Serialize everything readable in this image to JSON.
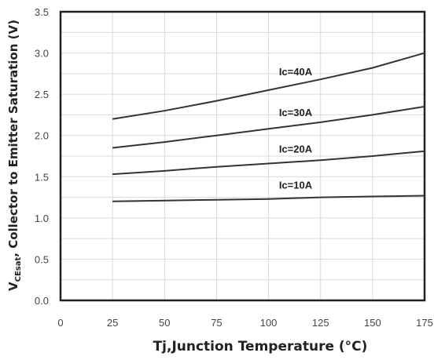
{
  "chart_data": {
    "type": "line",
    "title": "",
    "xlabel": "Tj,Junction Temperature (°C)",
    "ylabel_main": "V",
    "ylabel_sub": "CEsat",
    "ylabel_rest": ", Collector to Emitter Saturation (V)",
    "xlim": [
      0,
      175
    ],
    "ylim": [
      0,
      3.5
    ],
    "x_ticks": [
      0,
      25,
      50,
      75,
      100,
      125,
      150,
      175
    ],
    "x_tick_labels": [
      "0",
      "25",
      "50",
      "75",
      "100",
      "125",
      "150",
      "175"
    ],
    "y_ticks": [
      0,
      0.5,
      1.0,
      1.5,
      2.0,
      2.5,
      3.0,
      3.5
    ],
    "y_tick_labels": [
      "0.0",
      "0.5",
      "1.0",
      "1.5",
      "2.0",
      "2.5",
      "3.0",
      "3.5"
    ],
    "grid": true,
    "series": [
      {
        "name": "Ic=40A",
        "x": [
          25,
          50,
          75,
          100,
          125,
          150,
          175
        ],
        "y": [
          2.2,
          2.3,
          2.42,
          2.55,
          2.68,
          2.82,
          3.0
        ]
      },
      {
        "name": "Ic=30A",
        "x": [
          25,
          50,
          75,
          100,
          125,
          150,
          175
        ],
        "y": [
          1.85,
          1.92,
          2.0,
          2.08,
          2.16,
          2.25,
          2.35
        ]
      },
      {
        "name": "Ic=20A",
        "x": [
          25,
          50,
          75,
          100,
          125,
          150,
          175
        ],
        "y": [
          1.53,
          1.57,
          1.62,
          1.66,
          1.7,
          1.75,
          1.81
        ]
      },
      {
        "name": "Ic=10A",
        "x": [
          25,
          50,
          75,
          100,
          125,
          150,
          175
        ],
        "y": [
          1.2,
          1.21,
          1.22,
          1.23,
          1.25,
          1.26,
          1.27
        ]
      }
    ],
    "colors": {
      "line": "#333333",
      "grid": "#d9d9d9",
      "frame": "#222222"
    }
  }
}
